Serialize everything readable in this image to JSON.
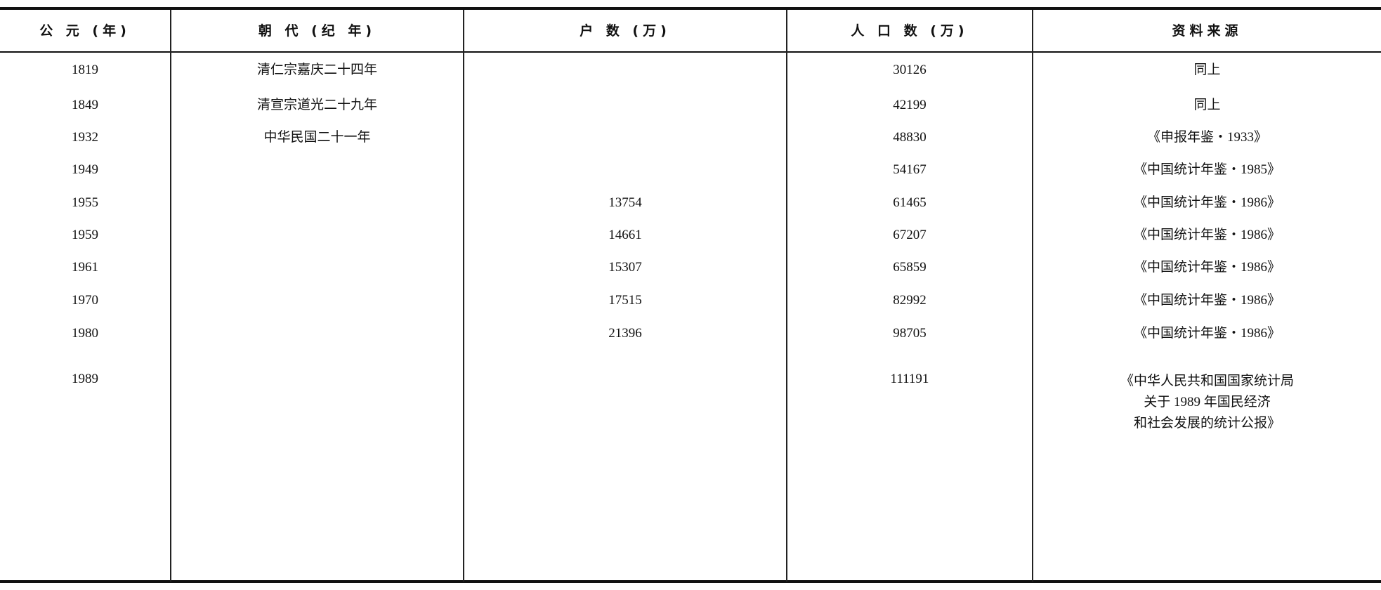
{
  "table": {
    "headers": [
      "公 元 (年)",
      "朝 代 (纪 年)",
      "户 数 (万)",
      "人 口 数 (万)",
      "资料来源"
    ],
    "rows": [
      {
        "year": "1819",
        "dynasty": "清仁宗嘉庆二十四年",
        "households": "",
        "population": "30126",
        "source": "同上"
      },
      {
        "year": "1849",
        "dynasty": "清宣宗道光二十九年",
        "households": "",
        "population": "42199",
        "source": "同上"
      },
      {
        "year": "1932",
        "dynasty": "中华民国二十一年",
        "households": "",
        "population": "48830",
        "source": "《申报年鉴・1933》"
      },
      {
        "year": "1949",
        "dynasty": "",
        "households": "",
        "population": "54167",
        "source": "《中国统计年鉴・1985》"
      },
      {
        "year": "1955",
        "dynasty": "",
        "households": "13754",
        "population": "61465",
        "source": "《中国统计年鉴・1986》"
      },
      {
        "year": "1959",
        "dynasty": "",
        "households": "14661",
        "population": "67207",
        "source": "《中国统计年鉴・1986》"
      },
      {
        "year": "1961",
        "dynasty": "",
        "households": "15307",
        "population": "65859",
        "source": "《中国统计年鉴・1986》"
      },
      {
        "year": "1970",
        "dynasty": "",
        "households": "17515",
        "population": "82992",
        "source": "《中国统计年鉴・1986》"
      },
      {
        "year": "1980",
        "dynasty": "",
        "households": "21396",
        "population": "98705",
        "source": "《中国统计年鉴・1986》"
      },
      {
        "year": "1989",
        "dynasty": "",
        "households": "",
        "population": "111191",
        "source_lines": [
          "《中华人民共和国国家统计局",
          "关于 1989 年国民经济",
          "和社会发展的统计公报》"
        ]
      }
    ]
  }
}
